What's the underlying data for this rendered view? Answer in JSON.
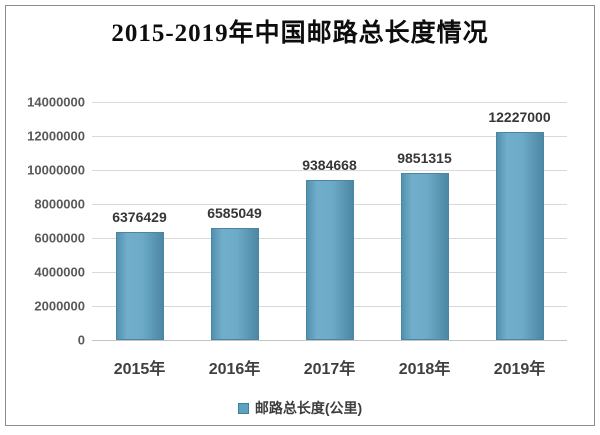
{
  "header": {
    "title": "2015-2019年中国邮路总长度情况"
  },
  "chart_data": {
    "type": "bar",
    "title": "2015-2019年中国邮路总长度情况",
    "categories": [
      "2015年",
      "2016年",
      "2017年",
      "2018年",
      "2019年"
    ],
    "series": [
      {
        "name": "邮路总长度(公里)",
        "values": [
          6376429,
          6585049,
          9384668,
          9851315,
          12227000
        ]
      }
    ],
    "data_labels": [
      "6376429",
      "6585049",
      "9384668",
      "9851315",
      "12227000"
    ],
    "ylim": [
      0,
      14000000
    ],
    "yticks": [
      14000000,
      12000000,
      10000000,
      8000000,
      6000000,
      4000000,
      2000000,
      0
    ],
    "ytick_labels": [
      "14000000",
      "12000000",
      "10000000",
      "8000000",
      "6000000",
      "4000000",
      "2000000",
      "0"
    ],
    "grid": true,
    "legend_position": "bottom",
    "bar_color": "#5ba1c2"
  },
  "colors": {
    "bar": "#5ba1c2",
    "gridline": "#d9d9d9",
    "frame_border": "#8c8c8c",
    "ytick_text": "#595959",
    "label_text": "#363636"
  }
}
